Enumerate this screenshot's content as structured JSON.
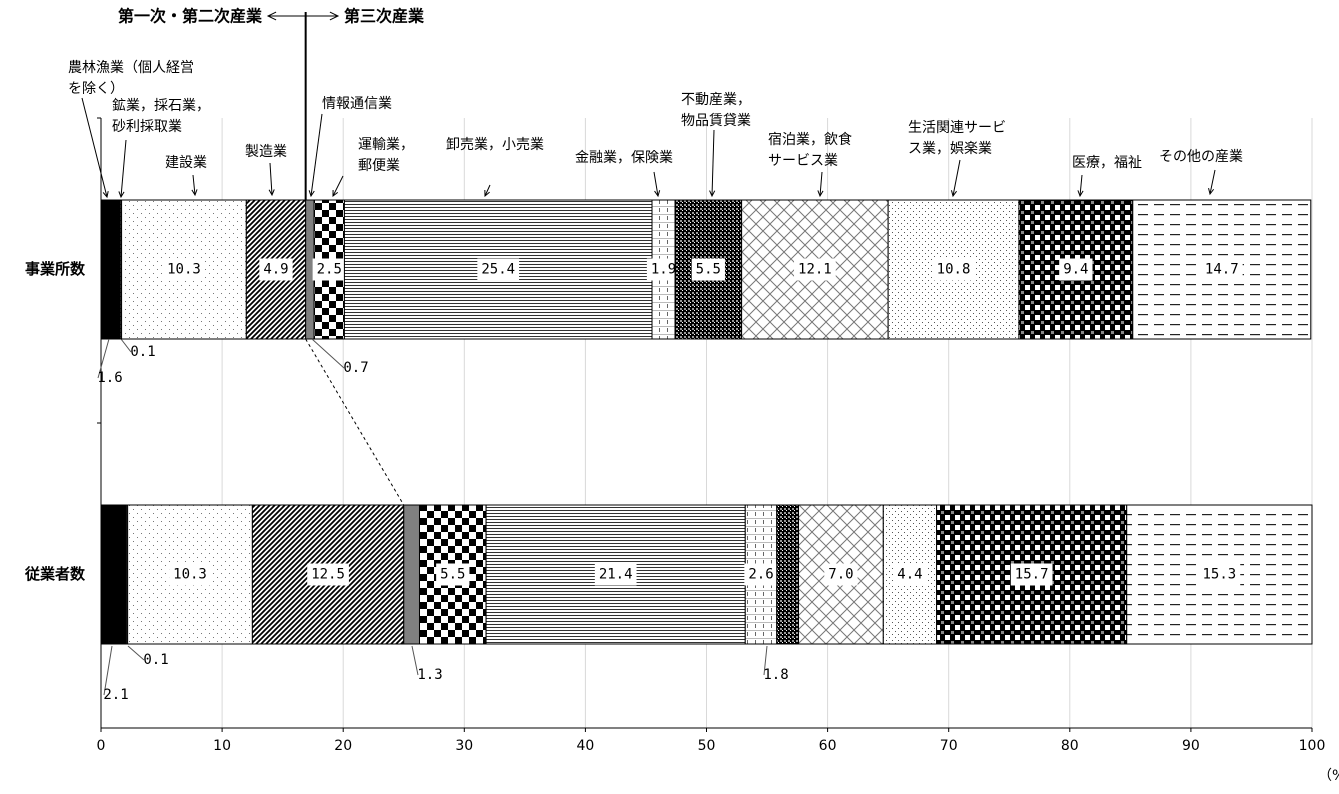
{
  "chart_data": {
    "type": "stacked_barh",
    "header_left": "第一次・第二次産業",
    "header_right": "第三次産業",
    "x_label": "（%）",
    "categories": [
      "事業所数",
      "従業者数"
    ],
    "series": [
      {
        "name": "農林漁業（個人経営を除く）",
        "values": [
          1.6,
          2.1
        ]
      },
      {
        "name": "鉱業，採石業，砂利採取業",
        "values": [
          0.1,
          0.1
        ]
      },
      {
        "name": "建設業",
        "values": [
          10.3,
          10.3
        ]
      },
      {
        "name": "製造業",
        "values": [
          4.9,
          12.5
        ]
      },
      {
        "name": "情報通信業",
        "values": [
          0.7,
          1.3
        ]
      },
      {
        "name": "運輸業，郵便業",
        "values": [
          2.5,
          5.5
        ]
      },
      {
        "name": "卸売業，小売業",
        "values": [
          25.4,
          21.4
        ]
      },
      {
        "name": "金融業，保険業",
        "values": [
          1.9,
          2.6
        ]
      },
      {
        "name": "不動産業，物品賃貸業",
        "values": [
          5.5,
          1.8
        ]
      },
      {
        "name": "宿泊業，飲食サービス業",
        "values": [
          12.1,
          7.0
        ],
        "value_labels": [
          "12.1",
          "7.0"
        ]
      },
      {
        "name": "生活関連サービス業，娯楽業",
        "values": [
          10.8,
          4.4
        ]
      },
      {
        "name": "医療，福祉",
        "values": [
          9.4,
          15.7
        ]
      },
      {
        "name": "その他の産業",
        "values": [
          14.7,
          15.3
        ]
      }
    ],
    "xlim": [
      0,
      100
    ],
    "xticks": [
      0,
      10,
      20,
      30,
      40,
      50,
      60,
      70,
      80,
      90,
      100
    ],
    "grid": true
  }
}
